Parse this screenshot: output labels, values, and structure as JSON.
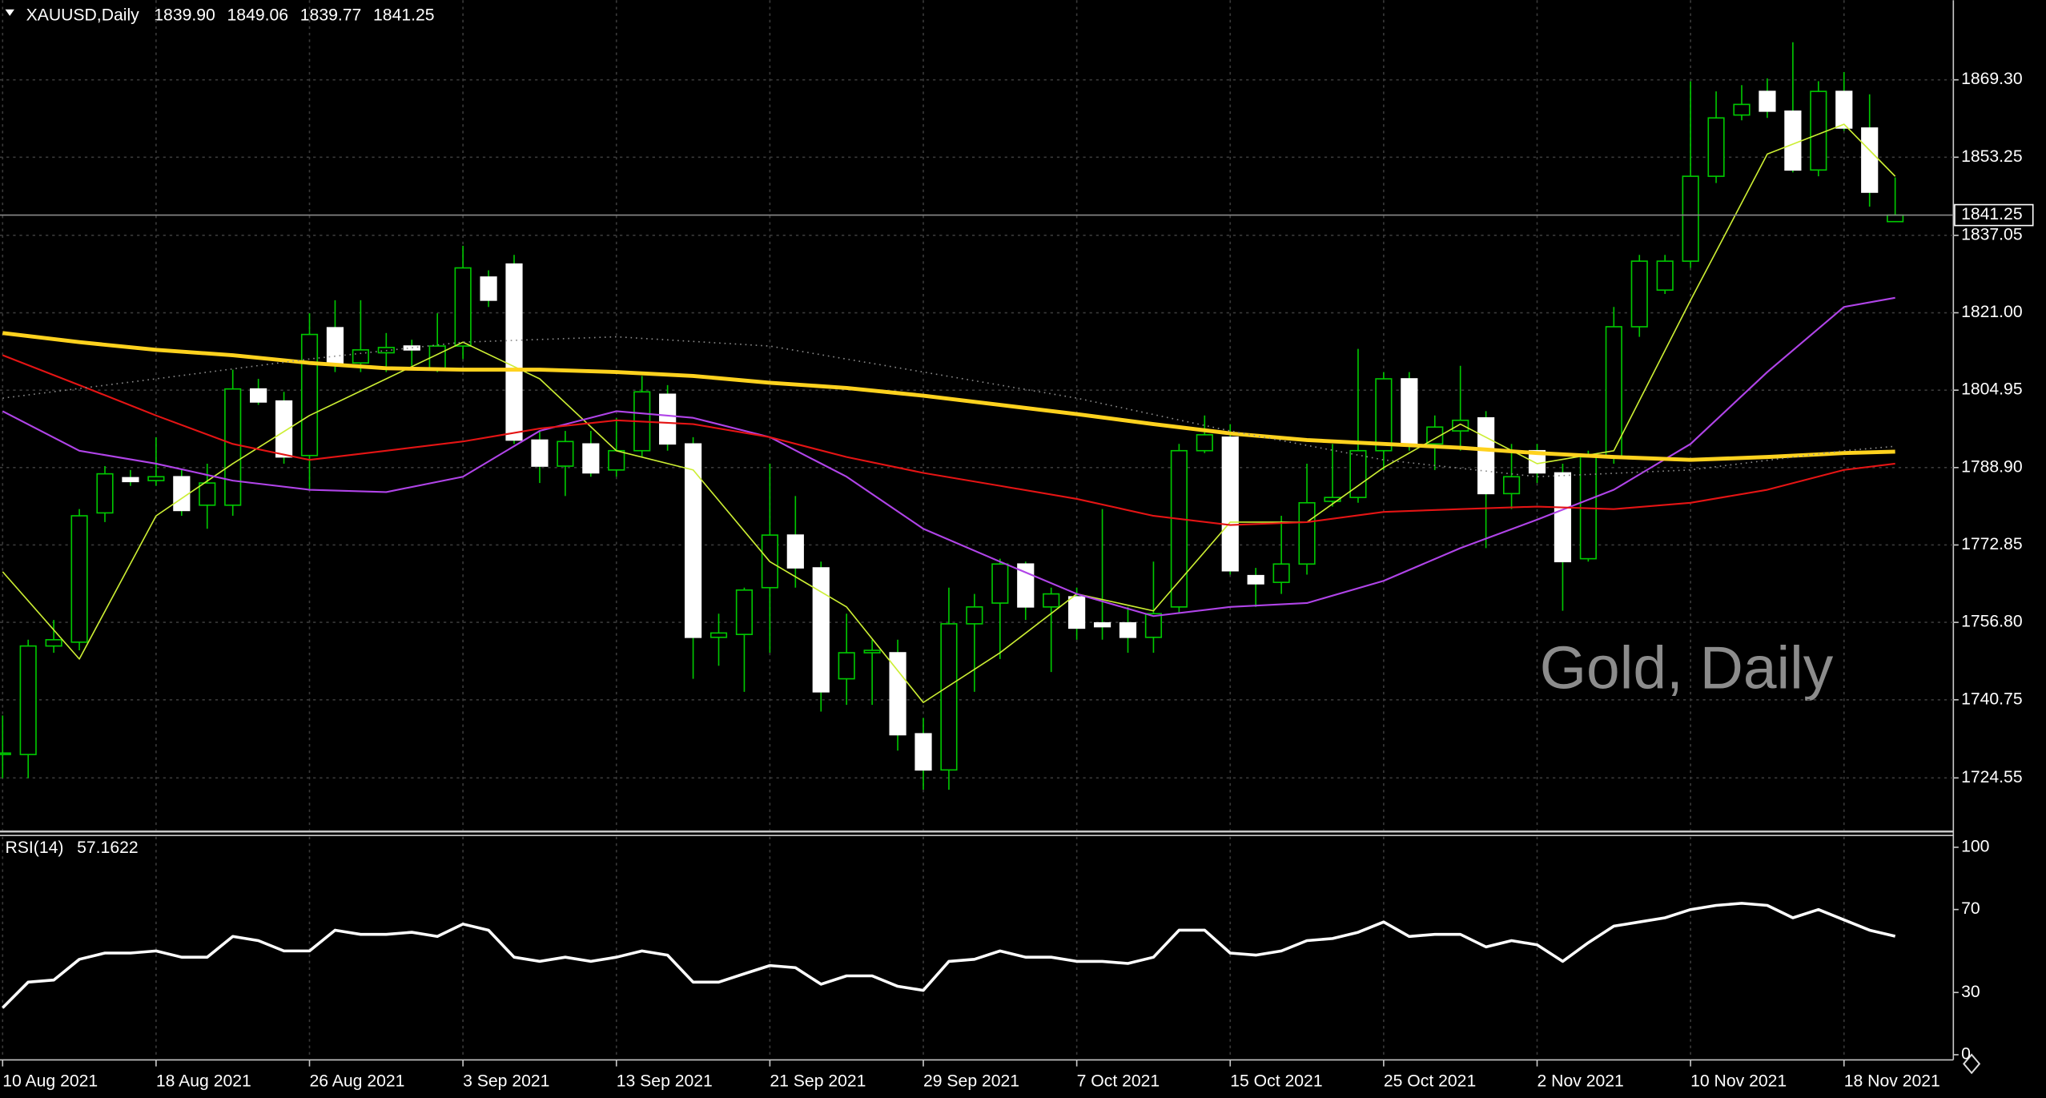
{
  "chart_data": [
    {
      "type": "candlestick",
      "title": "XAUUSD,Daily",
      "header_quote": [
        "1839.90",
        "1849.06",
        "1839.77",
        "1841.25"
      ],
      "annotation": "Gold, Daily",
      "categories": [
        "10 Aug 2021",
        null,
        null,
        null,
        null,
        null,
        "18 Aug 2021",
        null,
        null,
        null,
        null,
        null,
        "26 Aug 2021",
        null,
        null,
        null,
        null,
        null,
        "3 Sep 2021",
        null,
        null,
        null,
        null,
        null,
        "13 Sep 2021",
        null,
        null,
        null,
        null,
        null,
        "21 Sep 2021",
        null,
        null,
        null,
        null,
        null,
        "29 Sep 2021",
        null,
        null,
        null,
        null,
        null,
        "7 Oct 2021",
        null,
        null,
        null,
        null,
        null,
        "15 Oct 2021",
        null,
        null,
        null,
        null,
        null,
        "25 Oct 2021",
        null,
        null,
        null,
        null,
        null,
        "2 Nov 2021",
        null,
        null,
        null,
        null,
        null,
        "10 Nov 2021",
        null,
        null,
        null,
        null,
        null,
        "18 Nov 2021",
        null,
        null
      ],
      "candles": {
        "open": [
          1729.4,
          1729.4,
          1751.9,
          1752.7,
          1779.5,
          1786.8,
          1786.2,
          1787.0,
          1781.1,
          1781.1,
          1805.2,
          1802.7,
          1791.4,
          1817.9,
          1810.6,
          1812.7,
          1814.1,
          1809.5,
          1814.1,
          1828.4,
          1831.1,
          1794.6,
          1789.2,
          1793.8,
          1788.4,
          1792.4,
          1804.1,
          1793.8,
          1753.7,
          1754.3,
          1764.0,
          1774.9,
          1768.1,
          1745.1,
          1750.5,
          1750.5,
          1733.7,
          1726.2,
          1756.5,
          1760.8,
          1768.9,
          1760.0,
          1762.1,
          1756.7,
          1756.7,
          1753.7,
          1760.0,
          1792.4,
          1795.2,
          1766.5,
          1765.1,
          1768.9,
          1781.9,
          1782.7,
          1792.4,
          1807.3,
          1793.8,
          1796.5,
          1799.2,
          1783.5,
          1792.4,
          1787.8,
          1770.0,
          1791.1,
          1818.1,
          1825.7,
          1831.7,
          1849.3,
          1862.0,
          1866.9,
          1862.8,
          1850.6,
          1866.9,
          1859.3,
          1839.9
        ],
        "high": [
          1737.5,
          1753.2,
          1757.3,
          1780.3,
          1789.2,
          1788.4,
          1795.2,
          1788.4,
          1789.7,
          1809.2,
          1807.3,
          1804.6,
          1820.9,
          1823.6,
          1823.6,
          1816.8,
          1815.4,
          1820.9,
          1834.9,
          1829.8,
          1833.0,
          1796.5,
          1796.5,
          1796.5,
          1799.2,
          1807.9,
          1806.0,
          1795.2,
          1758.6,
          1764.0,
          1789.7,
          1783.0,
          1769.4,
          1758.6,
          1753.2,
          1753.2,
          1737.0,
          1764.0,
          1762.7,
          1770.0,
          1769.4,
          1764.0,
          1764.0,
          1780.3,
          1760.0,
          1769.4,
          1793.8,
          1799.7,
          1797.9,
          1768.1,
          1778.9,
          1789.7,
          1793.8,
          1813.5,
          1808.7,
          1808.7,
          1799.7,
          1810.0,
          1800.6,
          1793.8,
          1793.8,
          1789.7,
          1792.4,
          1822.2,
          1833.0,
          1833.0,
          1869.0,
          1866.9,
          1868.2,
          1869.6,
          1877.1,
          1869.0,
          1870.9,
          1866.3,
          1849.06
        ],
        "low": [
          1724.5,
          1724.5,
          1750.5,
          1751.0,
          1777.6,
          1785.1,
          1785.1,
          1778.9,
          1776.2,
          1778.9,
          1801.9,
          1789.7,
          1784.3,
          1808.7,
          1808.7,
          1808.7,
          1810.0,
          1808.7,
          1811.4,
          1822.2,
          1793.8,
          1785.7,
          1783.0,
          1787.0,
          1787.0,
          1791.1,
          1792.4,
          1745.1,
          1747.8,
          1742.4,
          1750.5,
          1764.0,
          1738.3,
          1739.7,
          1739.7,
          1730.2,
          1722.1,
          1722.1,
          1742.4,
          1749.2,
          1757.3,
          1746.5,
          1753.2,
          1753.2,
          1750.5,
          1750.5,
          1758.6,
          1791.9,
          1766.7,
          1760.0,
          1762.7,
          1766.7,
          1780.8,
          1781.6,
          1788.4,
          1792.4,
          1788.4,
          1792.4,
          1772.2,
          1780.3,
          1785.7,
          1759.2,
          1769.4,
          1789.7,
          1816.0,
          1824.9,
          1830.3,
          1847.9,
          1860.9,
          1861.4,
          1850.1,
          1849.3,
          1858.7,
          1843.0,
          1839.77
        ],
        "close": [
          1729.7,
          1751.9,
          1753.2,
          1778.9,
          1787.6,
          1786.0,
          1787.0,
          1780.0,
          1785.7,
          1805.2,
          1802.5,
          1791.1,
          1816.5,
          1810.3,
          1813.3,
          1813.8,
          1813.3,
          1814.1,
          1830.3,
          1823.6,
          1794.6,
          1789.2,
          1794.3,
          1787.8,
          1792.4,
          1804.6,
          1793.8,
          1753.7,
          1754.6,
          1763.5,
          1774.9,
          1768.1,
          1742.4,
          1750.5,
          1751.0,
          1733.5,
          1726.2,
          1756.5,
          1760.0,
          1768.9,
          1760.0,
          1762.7,
          1755.6,
          1755.9,
          1753.7,
          1758.6,
          1792.4,
          1795.7,
          1767.5,
          1764.8,
          1768.9,
          1781.6,
          1782.7,
          1792.4,
          1807.3,
          1793.8,
          1797.3,
          1798.7,
          1783.5,
          1787.0,
          1787.8,
          1769.4,
          1791.1,
          1818.1,
          1831.7,
          1831.7,
          1849.3,
          1861.4,
          1864.2,
          1862.8,
          1850.6,
          1866.9,
          1859.3,
          1846.0,
          1841.25
        ]
      },
      "up_color": "#00c800",
      "up_fill": "#000000",
      "down_fill": "#ffffff",
      "overlays": [
        {
          "color": "#ccee33",
          "width": 1,
          "dashed": false,
          "x": [
            0,
            3,
            6,
            9,
            12,
            15,
            18,
            21,
            24,
            27,
            30,
            33,
            36,
            39,
            42,
            45,
            48,
            51,
            54,
            57,
            60,
            63,
            66,
            69,
            72,
            74
          ],
          "values": [
            1767.3,
            1749.2,
            1778.9,
            1789.7,
            1799.7,
            1807.3,
            1814.9,
            1807.3,
            1792.4,
            1788.4,
            1769.4,
            1760.0,
            1740.2,
            1750.5,
            1762.7,
            1759.2,
            1777.6,
            1777.6,
            1788.9,
            1797.9,
            1789.7,
            1792.4,
            1823.6,
            1853.9,
            1860.1,
            1849.3
          ]
        },
        {
          "color": "#b044e8",
          "width": 1.3,
          "dashed": false,
          "x": [
            0,
            3,
            6,
            9,
            12,
            15,
            18,
            21,
            24,
            27,
            30,
            33,
            36,
            39,
            42,
            45,
            48,
            51,
            54,
            57,
            60,
            63,
            66,
            69,
            72,
            74
          ],
          "values": [
            1800.6,
            1792.4,
            1789.7,
            1786.2,
            1784.3,
            1783.8,
            1787.0,
            1796.5,
            1800.6,
            1799.2,
            1795.2,
            1787.0,
            1776.2,
            1769.4,
            1762.7,
            1758.1,
            1760.0,
            1760.8,
            1765.4,
            1772.2,
            1778.1,
            1784.3,
            1793.8,
            1808.7,
            1822.2,
            1824.1
          ]
        },
        {
          "color": "#e41414",
          "width": 1.3,
          "dashed": false,
          "x": [
            0,
            3,
            6,
            9,
            12,
            15,
            18,
            21,
            24,
            27,
            30,
            33,
            36,
            39,
            42,
            45,
            48,
            51,
            54,
            57,
            60,
            63,
            66,
            69,
            72,
            74
          ],
          "values": [
            1812.2,
            1806.0,
            1799.7,
            1793.8,
            1790.5,
            1792.4,
            1794.3,
            1797.0,
            1798.7,
            1797.9,
            1795.2,
            1791.1,
            1787.8,
            1785.1,
            1782.4,
            1778.9,
            1777.0,
            1777.6,
            1779.7,
            1780.3,
            1780.8,
            1780.3,
            1781.6,
            1784.3,
            1788.4,
            1789.7
          ]
        },
        {
          "color": "#ffd21e",
          "width": 3,
          "dashed": false,
          "x": [
            0,
            3,
            6,
            9,
            12,
            15,
            18,
            21,
            24,
            27,
            30,
            33,
            36,
            39,
            42,
            45,
            48,
            51,
            54,
            57,
            60,
            63,
            66,
            69,
            72,
            74
          ],
          "values": [
            1816.8,
            1814.9,
            1813.3,
            1812.2,
            1810.6,
            1809.5,
            1809.2,
            1809.2,
            1808.7,
            1807.9,
            1806.5,
            1805.4,
            1803.8,
            1801.9,
            1800.0,
            1797.9,
            1796.0,
            1794.6,
            1793.8,
            1793.0,
            1791.9,
            1791.1,
            1790.5,
            1791.1,
            1791.9,
            1792.2
          ]
        },
        {
          "color": "#8a8a8a",
          "width": 1,
          "dashed": true,
          "x": [
            0,
            6,
            12,
            18,
            24,
            30,
            36,
            42,
            48,
            54,
            60,
            66,
            72,
            74
          ],
          "values": [
            1803.3,
            1807.3,
            1811.4,
            1814.9,
            1816.0,
            1814.1,
            1808.7,
            1803.3,
            1796.5,
            1790.5,
            1787.0,
            1788.4,
            1792.4,
            1793.3
          ]
        }
      ],
      "ylim": [
        1713.7,
        1885.8
      ],
      "yticks": [
        {
          "value": 1869.3,
          "label": "1869.30"
        },
        {
          "value": 1853.25,
          "label": "1853.25"
        },
        {
          "value": 1837.05,
          "label": "1837.05"
        },
        {
          "value": 1821,
          "label": "1821.00"
        },
        {
          "value": 1804.95,
          "label": "1804.95"
        },
        {
          "value": 1788.9,
          "label": "1788.90"
        },
        {
          "value": 1772.85,
          "label": "1772.85"
        },
        {
          "value": 1756.8,
          "label": "1756.80"
        },
        {
          "value": 1740.75,
          "label": "1740.75"
        },
        {
          "value": 1724.55,
          "label": "1724.55"
        }
      ],
      "grid": true
    },
    {
      "type": "line",
      "title": "RSI(14)",
      "value_labels": {
        "74": "57.1622"
      },
      "color": "#ffffff",
      "values": [
        22.6,
        35,
        36,
        46,
        49,
        49,
        50,
        47,
        47,
        57,
        55,
        50,
        50,
        60,
        58,
        58,
        59,
        57,
        63,
        60,
        47,
        45,
        47,
        45,
        47,
        50,
        48,
        35,
        35,
        39,
        43,
        42,
        34,
        38,
        38,
        33,
        31,
        45,
        46,
        50,
        47,
        47,
        45,
        45,
        44,
        47,
        60,
        60,
        49,
        48,
        50,
        55,
        56,
        59,
        64,
        57,
        58,
        58,
        52,
        55,
        53,
        45,
        54,
        62,
        64,
        66,
        70,
        72,
        73,
        72,
        66,
        70,
        65,
        60,
        57.1622
      ],
      "ylim": [
        -2.5,
        105.7
      ],
      "yticks": [
        100,
        70,
        30,
        0
      ],
      "grid": true
    }
  ]
}
